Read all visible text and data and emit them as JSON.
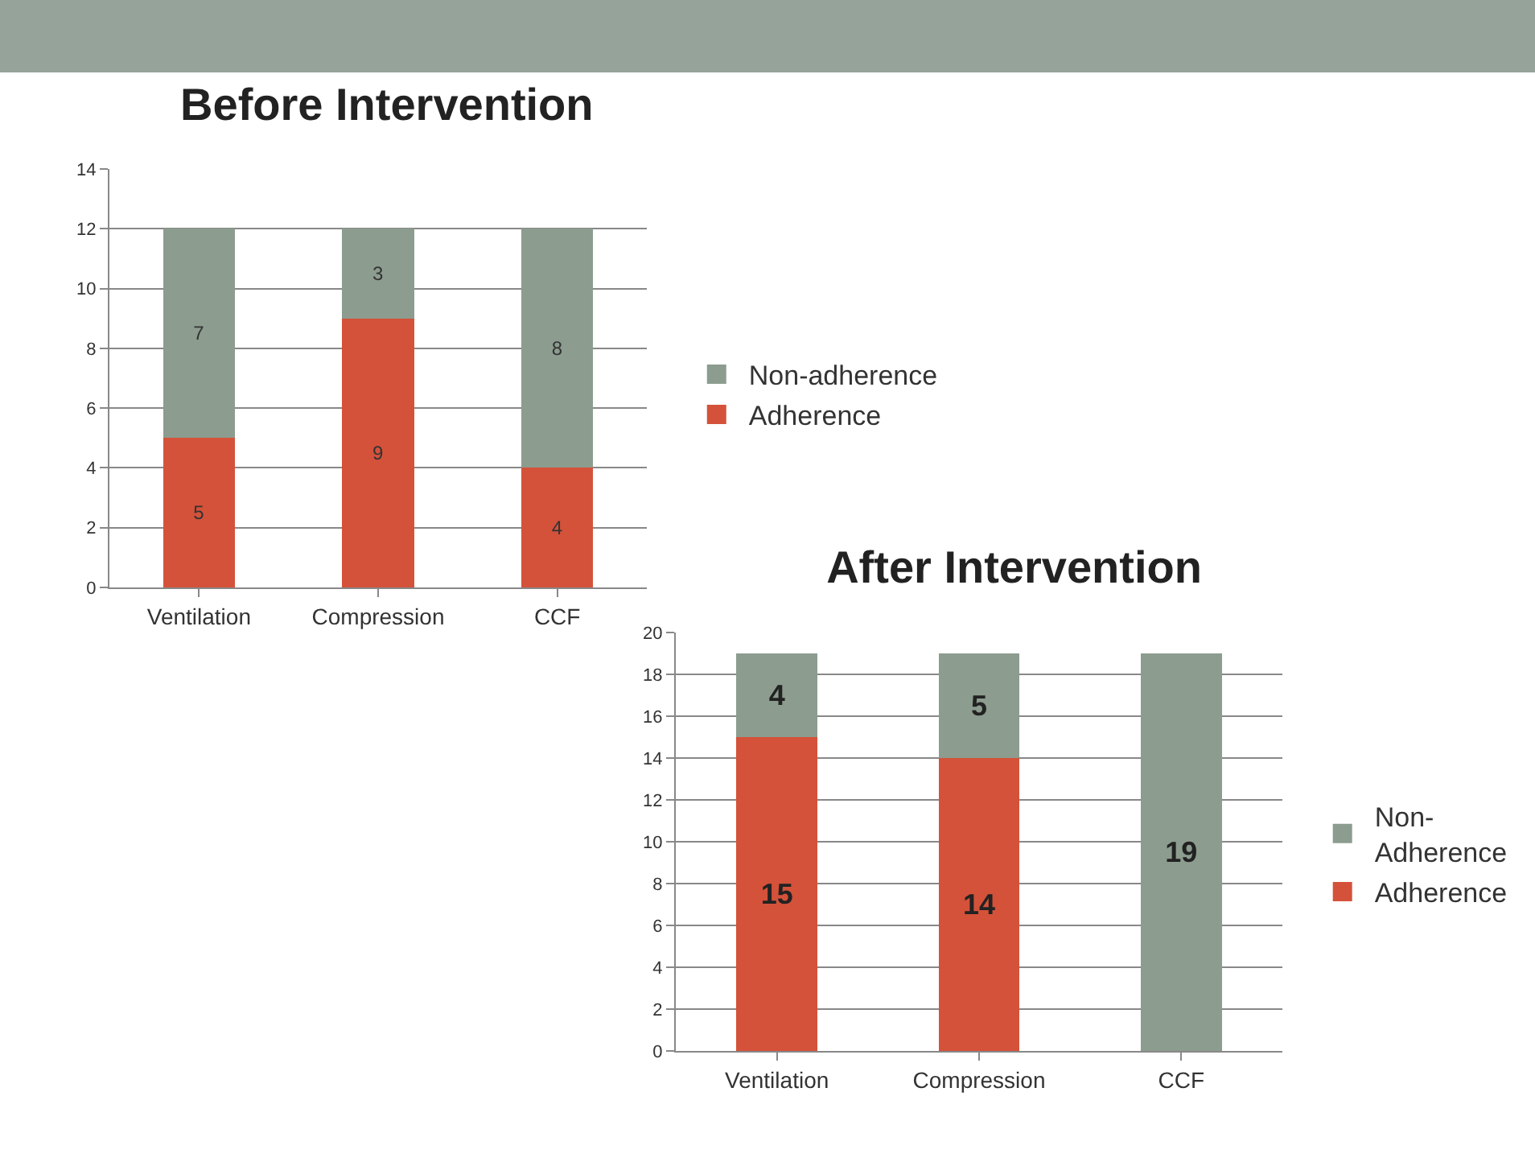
{
  "chart_data": [
    {
      "type": "bar",
      "title": "Before Intervention",
      "categories": [
        "Ventilation",
        "Compression",
        "CCF"
      ],
      "stacked": true,
      "series": [
        {
          "name": "Adherence",
          "color": "#d4523a",
          "values": [
            5,
            9,
            4
          ]
        },
        {
          "name": "Non-adherence",
          "color": "#8c9c8f",
          "values": [
            7,
            3,
            8
          ]
        }
      ],
      "ylim": [
        0,
        14
      ],
      "yticks": [
        0,
        2,
        4,
        6,
        8,
        10,
        12,
        14
      ],
      "grid": "y",
      "legend": "right",
      "data_labels": true
    },
    {
      "type": "bar",
      "title": "After Intervention",
      "categories": [
        "Ventilation",
        "Compression",
        "CCF"
      ],
      "stacked": true,
      "series": [
        {
          "name": "Adherence",
          "color": "#d4523a",
          "values": [
            15,
            14,
            0
          ],
          "value_labels": [
            "15",
            "14",
            null
          ]
        },
        {
          "name": "Non-Adherence",
          "color": "#8c9c8f",
          "values": [
            4,
            5,
            19
          ],
          "value_labels": [
            "4",
            "5",
            "19"
          ]
        }
      ],
      "ylim": [
        0,
        20
      ],
      "yticks": [
        0,
        2,
        4,
        6,
        8,
        10,
        12,
        14,
        16,
        18,
        20
      ],
      "grid": "y",
      "legend": "right"
    }
  ]
}
